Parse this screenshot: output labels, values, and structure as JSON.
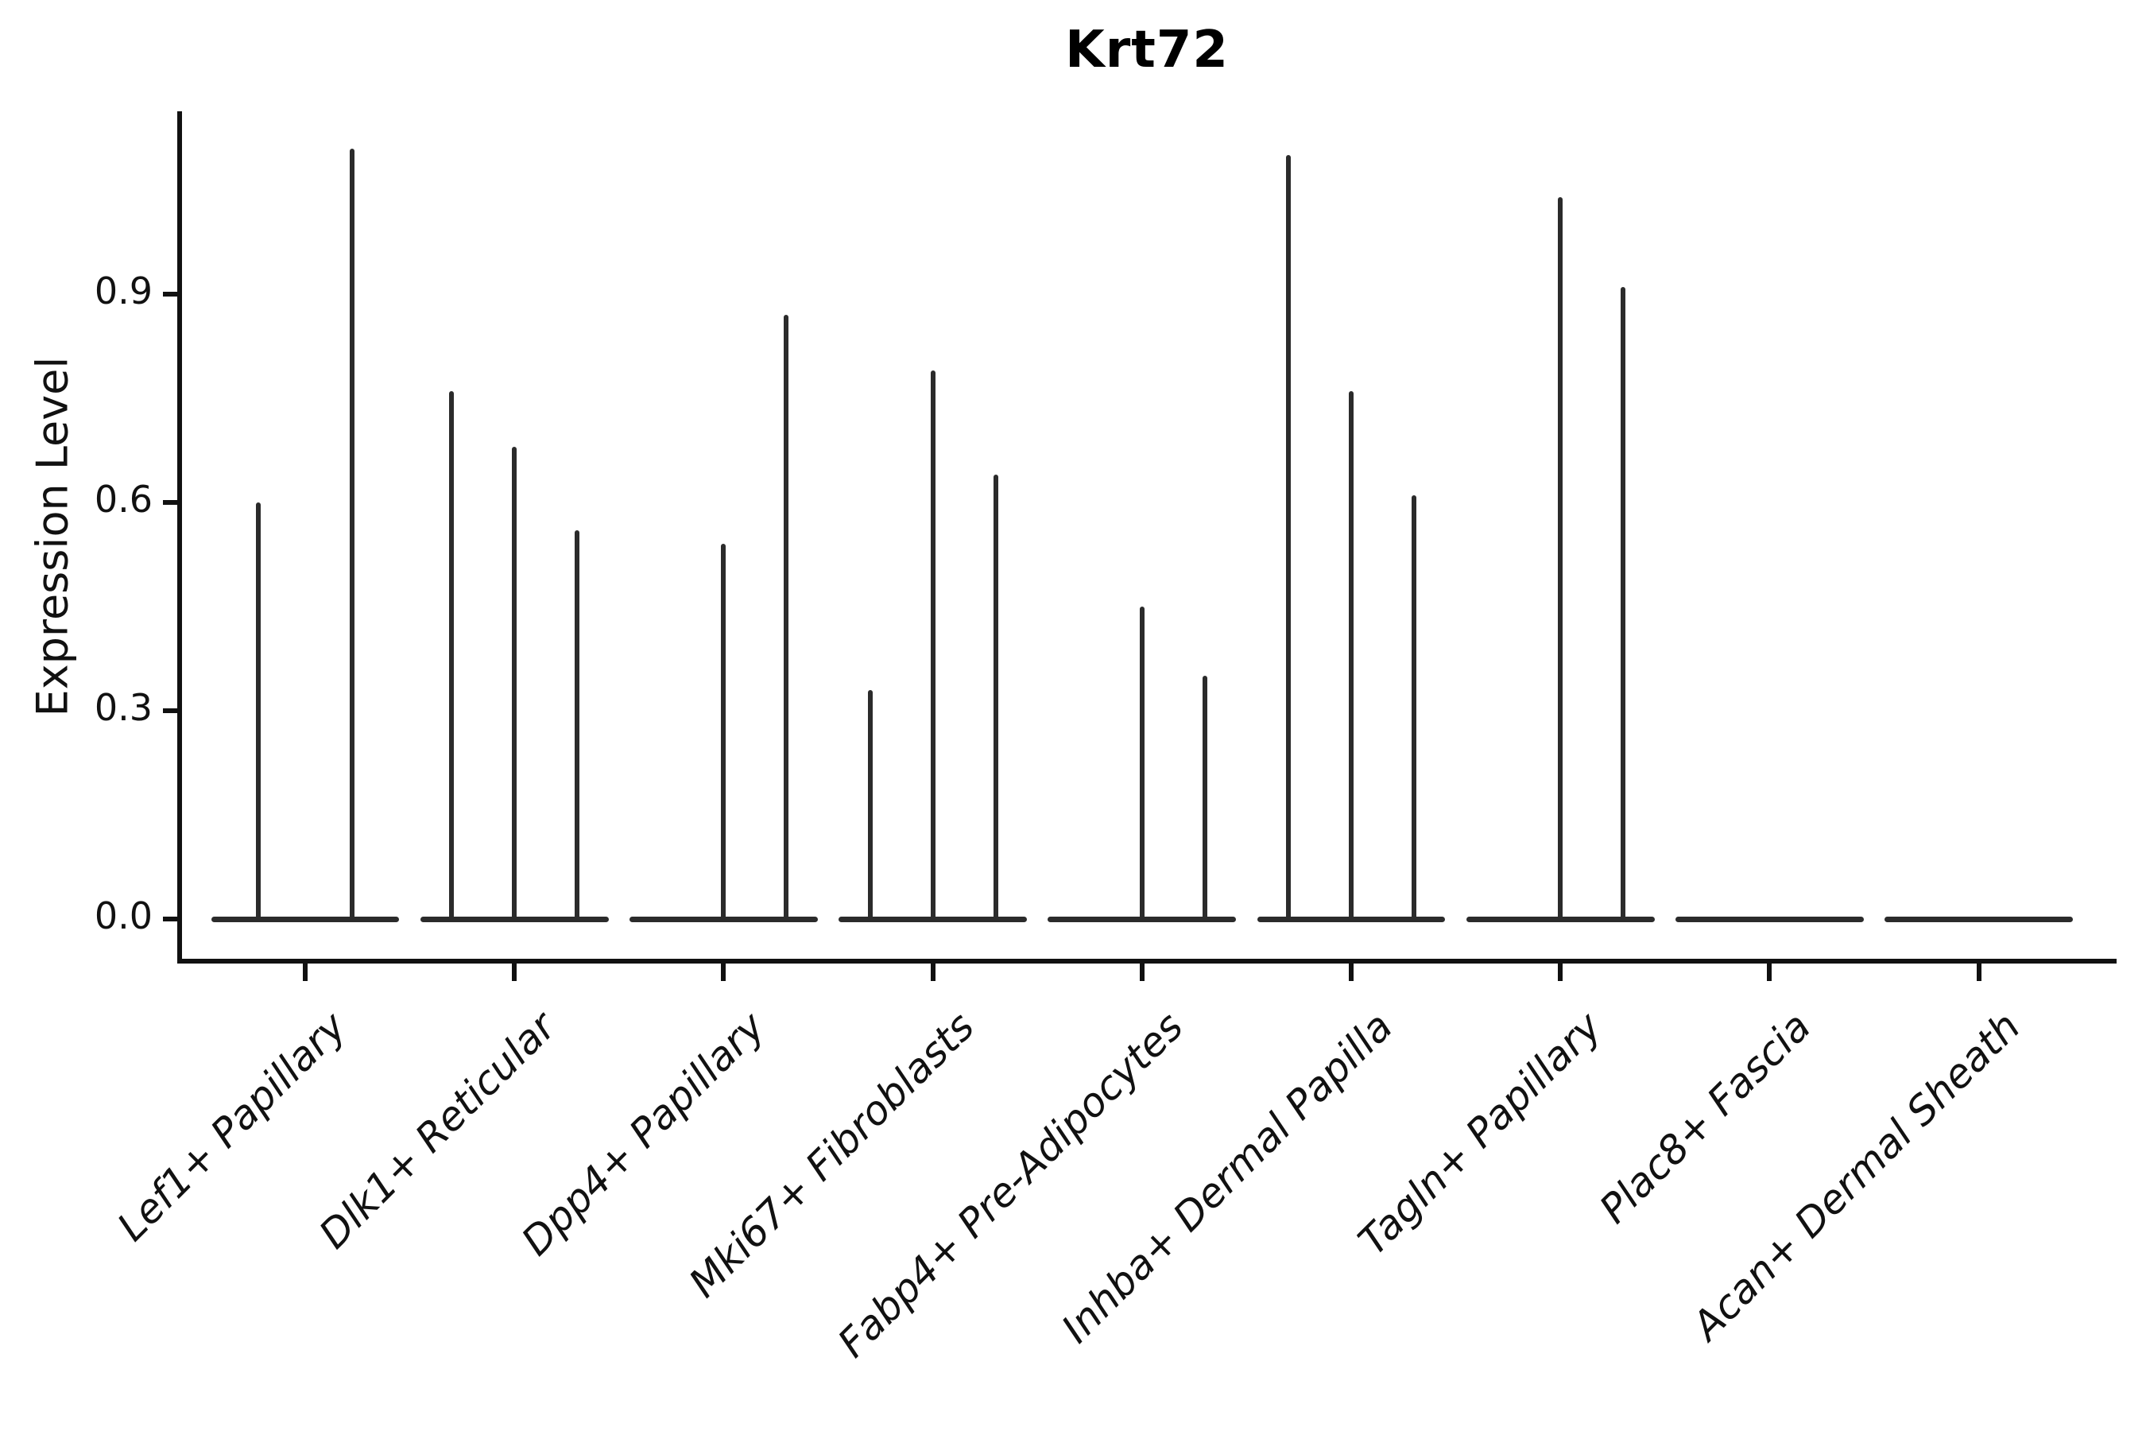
{
  "figure": {
    "title": "Krt72",
    "background_color": "#ffffff",
    "axis_color": "#111111",
    "violin_color": "#2b2b2b"
  },
  "chart_data": {
    "type": "violin",
    "title": "Krt72",
    "xlabel": "",
    "ylabel": "Expression Level",
    "ylim": [
      0,
      1.16
    ],
    "yticks": [
      0.0,
      0.3,
      0.6,
      0.9
    ],
    "ytick_labels": [
      "0.0",
      "0.3",
      "0.6",
      "0.9"
    ],
    "grid": false,
    "legend": "none",
    "x_label_rotation_deg": 45,
    "x_label_style": "italic",
    "categories": [
      "Lef1+ Papillary",
      "Dlk1+ Reticular",
      "Dpp4+ Papillary",
      "Mki67+ Fibroblasts",
      "Fabp4+ Pre-Adipocytes",
      "Inhba+ Dermal Papilla",
      "Tagln+ Papillary",
      "Plac8+ Fascia",
      "Acan+ Dermal Sheath"
    ],
    "series": [
      {
        "category": "Lef1+ Papillary",
        "violin_max_values": [
          0.6,
          1.11
        ]
      },
      {
        "category": "Dlk1+ Reticular",
        "violin_max_values": [
          0.76,
          0.68,
          0.56
        ]
      },
      {
        "category": "Dpp4+ Papillary",
        "violin_max_values": [
          0.0,
          0.54,
          0.87
        ]
      },
      {
        "category": "Mki67+ Fibroblasts",
        "violin_max_values": [
          0.33,
          0.79,
          0.64
        ]
      },
      {
        "category": "Fabp4+ Pre-Adipocytes",
        "violin_max_values": [
          0.0,
          0.45,
          0.35
        ]
      },
      {
        "category": "Inhba+ Dermal Papilla",
        "violin_max_values": [
          1.1,
          0.76,
          0.61
        ]
      },
      {
        "category": "Tagln+ Papillary",
        "violin_max_values": [
          0.0,
          1.04,
          0.91
        ]
      },
      {
        "category": "Plac8+ Fascia",
        "violin_max_values": [
          0.0,
          0.0,
          0.0
        ]
      },
      {
        "category": "Acan+ Dermal Sheath",
        "violin_max_values": [
          0.0,
          0.0,
          0.0
        ]
      }
    ],
    "description": "Violin plot of Krt72 expression; violins are near-zero-width spikes rising from flat bases at 0."
  }
}
